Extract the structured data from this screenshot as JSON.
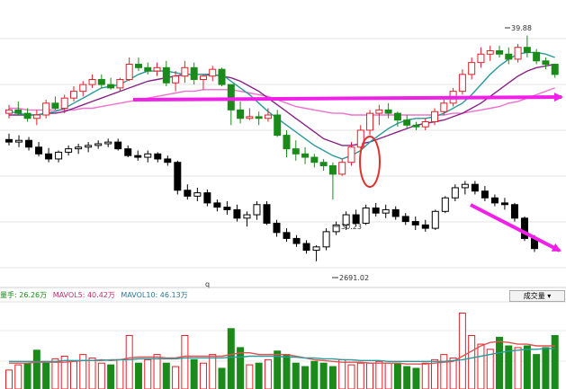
{
  "colors": {
    "up": "#e0202a",
    "down": "#1a8a1a",
    "index": "#000000",
    "ma_teal": "#2a9a9a",
    "ma_purple": "#882288",
    "ma_pink": "#f070d0",
    "arrow": "#f020e8",
    "circle": "#e03030"
  },
  "volume_panel": {
    "legend_vol": "量手: 26.26万",
    "legend_ma5": "MAVOL5: 40.42万",
    "legend_ma10": "MAVOL10: 46.13万",
    "dropdown_label": "成交量"
  },
  "x_label": "q",
  "chart_data": [
    {
      "type": "candlestick",
      "ylim": [
        25,
        42
      ],
      "annotations": [
        "39.88",
        "30.23"
      ],
      "ohlc": [
        [
          35.3,
          35.8,
          35.0,
          35.5
        ],
        [
          35.5,
          36.0,
          35.2,
          35.3
        ],
        [
          35.3,
          35.6,
          34.8,
          35.0
        ],
        [
          35.0,
          35.5,
          34.6,
          35.2
        ],
        [
          35.2,
          36.1,
          35.0,
          35.9
        ],
        [
          35.9,
          36.3,
          35.5,
          35.6
        ],
        [
          35.6,
          36.4,
          35.3,
          36.2
        ],
        [
          36.2,
          36.9,
          36.0,
          36.6
        ],
        [
          36.6,
          37.2,
          36.3,
          37.0
        ],
        [
          37.0,
          37.6,
          36.8,
          37.3
        ],
        [
          37.3,
          37.6,
          36.8,
          37.0
        ],
        [
          37.0,
          37.4,
          36.7,
          36.8
        ],
        [
          36.8,
          37.4,
          36.6,
          37.3
        ],
        [
          37.3,
          38.6,
          37.2,
          38.2
        ],
        [
          38.2,
          38.6,
          37.8,
          38.0
        ],
        [
          38.0,
          38.3,
          37.6,
          37.8
        ],
        [
          37.8,
          38.3,
          37.5,
          38.0
        ],
        [
          38.0,
          38.4,
          36.9,
          37.1
        ],
        [
          37.1,
          37.8,
          36.6,
          37.5
        ],
        [
          37.5,
          38.4,
          37.1,
          38.0
        ],
        [
          38.0,
          38.3,
          37.0,
          37.3
        ],
        [
          37.3,
          37.6,
          36.7,
          37.5
        ],
        [
          37.5,
          38.1,
          37.2,
          37.9
        ],
        [
          37.9,
          38.0,
          36.9,
          37.0
        ],
        [
          37.0,
          37.0,
          34.6,
          35.5
        ],
        [
          35.5,
          36.0,
          34.7,
          35.0
        ],
        [
          35.0,
          35.6,
          34.9,
          35.1
        ],
        [
          35.1,
          35.4,
          34.6,
          35.0
        ],
        [
          35.0,
          35.6,
          34.8,
          35.2
        ],
        [
          35.2,
          35.5,
          33.9,
          34.0
        ],
        [
          34.0,
          34.3,
          32.7,
          33.2
        ],
        [
          33.2,
          33.7,
          32.5,
          32.9
        ],
        [
          32.9,
          33.3,
          32.3,
          32.7
        ],
        [
          32.7,
          32.9,
          32.1,
          32.4
        ],
        [
          32.4,
          32.6,
          31.9,
          32.2
        ],
        [
          32.2,
          32.4,
          30.2,
          31.7
        ],
        [
          31.7,
          32.6,
          31.6,
          32.4
        ],
        [
          32.4,
          33.6,
          32.2,
          33.3
        ],
        [
          33.3,
          34.6,
          33.2,
          34.3
        ],
        [
          34.3,
          35.5,
          34.0,
          35.3
        ],
        [
          35.3,
          35.8,
          34.6,
          35.5
        ],
        [
          35.5,
          35.9,
          35.0,
          35.3
        ],
        [
          35.3,
          35.4,
          34.5,
          34.9
        ],
        [
          34.9,
          35.2,
          34.4,
          34.6
        ],
        [
          34.6,
          34.8,
          34.3,
          34.5
        ],
        [
          34.5,
          35.0,
          34.3,
          34.8
        ],
        [
          34.8,
          35.6,
          34.6,
          35.4
        ],
        [
          35.4,
          36.1,
          35.2,
          35.9
        ],
        [
          35.9,
          36.8,
          35.7,
          36.6
        ],
        [
          36.6,
          37.9,
          36.4,
          37.6
        ],
        [
          37.6,
          38.6,
          37.3,
          38.3
        ],
        [
          38.3,
          39.2,
          38.0,
          38.8
        ],
        [
          38.8,
          39.3,
          38.4,
          39.0
        ],
        [
          39.0,
          39.3,
          38.6,
          38.8
        ],
        [
          38.8,
          39.2,
          38.2,
          38.5
        ],
        [
          38.5,
          39.4,
          38.3,
          39.2
        ],
        [
          39.2,
          39.9,
          38.6,
          38.9
        ],
        [
          38.9,
          39.1,
          38.2,
          38.4
        ],
        [
          38.4,
          38.6,
          37.9,
          38.2
        ],
        [
          38.2,
          38.2,
          37.4,
          37.6
        ]
      ],
      "ma_teal": [
        35.4,
        35.3,
        35.2,
        35.2,
        35.3,
        35.4,
        35.6,
        35.9,
        36.2,
        36.5,
        36.8,
        36.9,
        37.0,
        37.3,
        37.6,
        37.8,
        37.8,
        37.8,
        37.7,
        37.6,
        37.6,
        37.6,
        37.5,
        37.6,
        37.2,
        36.8,
        36.4,
        35.9,
        35.4,
        35.0,
        34.6,
        34.2,
        33.8,
        33.4,
        33.1,
        32.8,
        32.6,
        32.8,
        33.1,
        33.6,
        34.0,
        34.4,
        34.7,
        34.9,
        35.0,
        35.0,
        35.1,
        35.3,
        35.6,
        35.9,
        36.4,
        37.0,
        37.6,
        38.1,
        38.5,
        38.8,
        38.9,
        38.9,
        38.8,
        38.6
      ],
      "ma_purple": [
        35.2,
        35.2,
        35.2,
        35.2,
        35.3,
        35.3,
        35.4,
        35.6,
        35.8,
        36.0,
        36.2,
        36.4,
        36.6,
        36.8,
        37.0,
        37.2,
        37.3,
        37.4,
        37.5,
        37.6,
        37.6,
        37.6,
        37.6,
        37.5,
        37.4,
        37.2,
        36.9,
        36.6,
        36.2,
        35.8,
        35.4,
        35.0,
        34.6,
        34.2,
        33.8,
        33.6,
        33.4,
        33.4,
        33.5,
        33.6,
        33.8,
        34.0,
        34.2,
        34.4,
        34.6,
        34.7,
        34.8,
        34.9,
        35.1,
        35.3,
        35.6,
        35.9,
        36.3,
        36.7,
        37.1,
        37.5,
        37.8,
        38.0,
        38.1,
        38.2
      ],
      "ma_pink": [
        35.6,
        35.6,
        35.5,
        35.5,
        35.5,
        35.5,
        35.5,
        35.5,
        35.6,
        35.6,
        35.7,
        35.8,
        35.9,
        36.0,
        36.1,
        36.2,
        36.3,
        36.4,
        36.5,
        36.6,
        36.6,
        36.7,
        36.7,
        36.7,
        36.7,
        36.6,
        36.5,
        36.4,
        36.3,
        36.1,
        35.9,
        35.7,
        35.6,
        35.5,
        35.4,
        35.3,
        35.3,
        35.2,
        35.2,
        35.2,
        35.2,
        35.2,
        35.2,
        35.2,
        35.2,
        35.2,
        35.2,
        35.2,
        35.3,
        35.3,
        35.4,
        35.5,
        35.6,
        35.7,
        35.9,
        36.0,
        36.2,
        36.4,
        36.6,
        36.8
      ]
    },
    {
      "type": "candlestick",
      "ylim": [
        2660,
        3000
      ],
      "annotations": [
        "2691.02"
      ],
      "ohlc": [
        [
          2835,
          2842,
          2828,
          2832
        ],
        [
          2832,
          2840,
          2826,
          2834
        ],
        [
          2834,
          2838,
          2822,
          2826
        ],
        [
          2826,
          2832,
          2815,
          2818
        ],
        [
          2818,
          2825,
          2808,
          2812
        ],
        [
          2812,
          2822,
          2808,
          2820
        ],
        [
          2820,
          2828,
          2816,
          2824
        ],
        [
          2824,
          2830,
          2818,
          2826
        ],
        [
          2826,
          2832,
          2820,
          2828
        ],
        [
          2828,
          2834,
          2824,
          2830
        ],
        [
          2830,
          2836,
          2826,
          2832
        ],
        [
          2832,
          2836,
          2822,
          2824
        ],
        [
          2824,
          2828,
          2814,
          2816
        ],
        [
          2816,
          2822,
          2810,
          2814
        ],
        [
          2814,
          2822,
          2808,
          2818
        ],
        [
          2818,
          2820,
          2808,
          2812
        ],
        [
          2812,
          2816,
          2804,
          2808
        ],
        [
          2808,
          2810,
          2770,
          2775
        ],
        [
          2775,
          2782,
          2764,
          2768
        ],
        [
          2768,
          2778,
          2762,
          2772
        ],
        [
          2772,
          2776,
          2756,
          2760
        ],
        [
          2760,
          2764,
          2750,
          2755
        ],
        [
          2755,
          2762,
          2746,
          2752
        ],
        [
          2752,
          2758,
          2738,
          2742
        ],
        [
          2742,
          2750,
          2732,
          2746
        ],
        [
          2746,
          2762,
          2740,
          2758
        ],
        [
          2758,
          2762,
          2734,
          2736
        ],
        [
          2736,
          2740,
          2720,
          2725
        ],
        [
          2725,
          2730,
          2714,
          2718
        ],
        [
          2718,
          2722,
          2708,
          2712
        ],
        [
          2712,
          2716,
          2700,
          2704
        ],
        [
          2704,
          2710,
          2691,
          2708
        ],
        [
          2708,
          2730,
          2704,
          2726
        ],
        [
          2726,
          2738,
          2722,
          2734
        ],
        [
          2734,
          2750,
          2728,
          2746
        ],
        [
          2746,
          2752,
          2732,
          2736
        ],
        [
          2736,
          2758,
          2734,
          2754
        ],
        [
          2754,
          2760,
          2744,
          2748
        ],
        [
          2748,
          2758,
          2742,
          2752
        ],
        [
          2752,
          2756,
          2740,
          2744
        ],
        [
          2744,
          2748,
          2734,
          2738
        ],
        [
          2738,
          2744,
          2728,
          2734
        ],
        [
          2734,
          2740,
          2726,
          2730
        ],
        [
          2730,
          2752,
          2728,
          2750
        ],
        [
          2750,
          2768,
          2748,
          2766
        ],
        [
          2766,
          2782,
          2762,
          2778
        ],
        [
          2778,
          2786,
          2770,
          2782
        ],
        [
          2782,
          2786,
          2770,
          2774
        ],
        [
          2774,
          2780,
          2762,
          2766
        ],
        [
          2766,
          2770,
          2756,
          2760
        ],
        [
          2760,
          2766,
          2752,
          2758
        ],
        [
          2758,
          2760,
          2738,
          2742
        ],
        [
          2742,
          2744,
          2715,
          2718
        ],
        [
          2718,
          2722,
          2702,
          2706
        ]
      ]
    },
    {
      "type": "bar",
      "title": "成交量",
      "ylim": [
        0,
        100
      ],
      "values": [
        22,
        28,
        30,
        45,
        30,
        35,
        38,
        32,
        40,
        36,
        30,
        28,
        34,
        62,
        30,
        34,
        40,
        30,
        26,
        62,
        34,
        30,
        40,
        24,
        70,
        48,
        28,
        30,
        34,
        44,
        40,
        30,
        26,
        32,
        30,
        26,
        34,
        28,
        30,
        30,
        32,
        30,
        30,
        26,
        24,
        30,
        34,
        40,
        36,
        88,
        62,
        52,
        46,
        60,
        50,
        48,
        50,
        40,
        48,
        62
      ],
      "up": [
        true,
        true,
        false,
        false,
        false,
        true,
        true,
        true,
        true,
        true,
        true,
        false,
        true,
        true,
        false,
        true,
        true,
        false,
        true,
        true,
        false,
        true,
        true,
        false,
        false,
        false,
        true,
        false,
        true,
        false,
        false,
        false,
        false,
        false,
        false,
        false,
        true,
        true,
        true,
        true,
        true,
        true,
        false,
        false,
        false,
        true,
        true,
        true,
        true,
        true,
        true,
        true,
        true,
        false,
        false,
        true,
        false,
        false,
        false,
        false
      ],
      "ma_red": [
        30,
        30,
        30,
        31,
        31,
        31,
        31,
        32,
        33,
        33,
        34,
        33,
        34,
        36,
        37,
        37,
        37,
        36,
        36,
        38,
        38,
        38,
        38,
        38,
        40,
        42,
        42,
        40,
        40,
        40,
        40,
        38,
        36,
        34,
        33,
        32,
        31,
        31,
        31,
        30,
        30,
        30,
        30,
        29,
        29,
        29,
        30,
        31,
        32,
        38,
        44,
        50,
        54,
        55,
        54,
        52,
        52,
        50,
        50,
        50
      ],
      "ma_teal": [
        32,
        32,
        32,
        32,
        32,
        32,
        33,
        33,
        33,
        33,
        33,
        34,
        34,
        34,
        35,
        35,
        35,
        35,
        35,
        36,
        36,
        36,
        36,
        36,
        37,
        37,
        38,
        38,
        38,
        38,
        37,
        37,
        36,
        36,
        35,
        35,
        34,
        34,
        33,
        33,
        33,
        32,
        32,
        32,
        32,
        32,
        32,
        32,
        33,
        34,
        36,
        38,
        40,
        42,
        44,
        45,
        46,
        46,
        47,
        47
      ]
    }
  ]
}
